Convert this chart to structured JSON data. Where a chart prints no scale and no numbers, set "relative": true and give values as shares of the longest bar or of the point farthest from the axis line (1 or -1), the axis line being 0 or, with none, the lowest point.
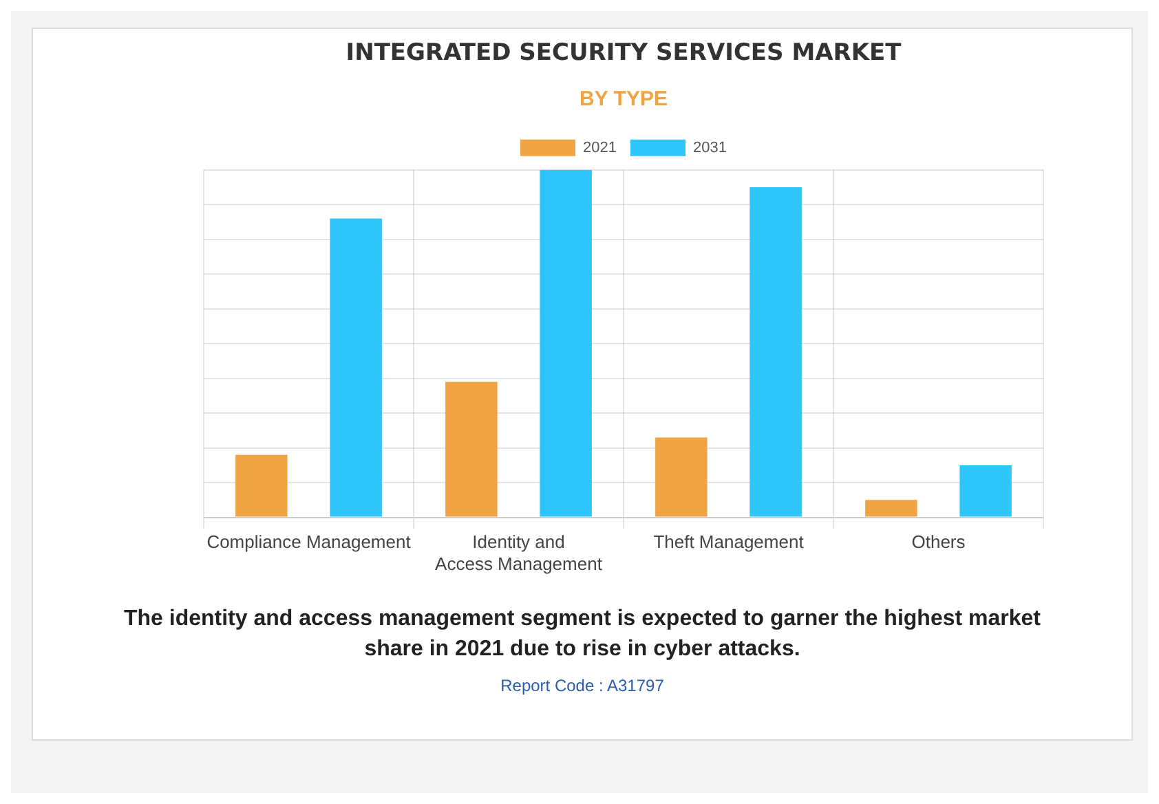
{
  "chart_data": {
    "type": "bar",
    "title": "INTEGRATED SECURITY SERVICES MARKET",
    "subtitle": "BY TYPE",
    "categories": [
      "Compliance Management",
      "Identity and Access Management",
      "Theft Management",
      "Others"
    ],
    "relative": true,
    "series": [
      {
        "name": "2021",
        "color": "#f0a342",
        "values": [
          0.18,
          0.39,
          0.23,
          0.05
        ]
      },
      {
        "name": "2031",
        "color": "#2ec5fb",
        "values": [
          0.86,
          1,
          0.95,
          0.15
        ]
      }
    ],
    "grid": true,
    "legend": "top",
    "annotations": [
      "The identity and access management segment is expected to garner the highest market share in 2021 due to rise in cyber attacks.",
      "Report Code : A31797"
    ]
  }
}
